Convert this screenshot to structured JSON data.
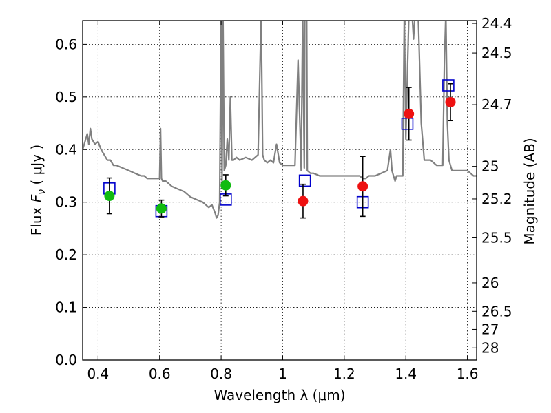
{
  "chart_data": {
    "type": "scatter",
    "xlabel": "Wavelength  λ (μm)",
    "ylabel": "Flux  F_ν  ( μJy )",
    "ylabel_parts": {
      "prefix": "Flux  ",
      "symbol": "F",
      "subscript": "ν",
      "suffix": "  ( μJy )"
    },
    "y2label": "Magnitude (AB)",
    "xlim": [
      0.35,
      1.63
    ],
    "ylim": [
      0.0,
      0.645
    ],
    "grid": true,
    "x_ticks": [
      0.4,
      0.6,
      0.8,
      1.0,
      1.2,
      1.4,
      1.6
    ],
    "x_tick_labels": [
      "0.4",
      "0.6",
      "0.8",
      "1",
      "1.2",
      "1.4",
      "1.6"
    ],
    "y_ticks": [
      0.0,
      0.1,
      0.2,
      0.3,
      0.4,
      0.5,
      0.6
    ],
    "y_tick_labels": [
      "0.0",
      "0.1",
      "0.2",
      "0.3",
      "0.4",
      "0.5",
      "0.6"
    ],
    "y2_ticks": [
      {
        "label": "24.4",
        "flux": 0.6397
      },
      {
        "label": "24.5",
        "flux": 0.5834
      },
      {
        "label": "24.7",
        "flux": 0.4853
      },
      {
        "label": "25",
        "flux": 0.3681
      },
      {
        "label": "25.2",
        "flux": 0.3062
      },
      {
        "label": "25.5",
        "flux": 0.2323
      },
      {
        "label": "26",
        "flux": 0.1466
      },
      {
        "label": "26.5",
        "flux": 0.0925
      },
      {
        "label": "27",
        "flux": 0.0583
      },
      {
        "label": "28",
        "flux": 0.0232
      }
    ],
    "colors": {
      "spectrum": "#808080",
      "green": "#11bb11",
      "red": "#ee1111",
      "model": "#0000cc",
      "errorbar": "#000000"
    },
    "spectrum": {
      "x": [
        0.35,
        0.36,
        0.365,
        0.37,
        0.375,
        0.38,
        0.39,
        0.4,
        0.41,
        0.42,
        0.43,
        0.44,
        0.45,
        0.46,
        0.48,
        0.5,
        0.52,
        0.54,
        0.55,
        0.56,
        0.58,
        0.6,
        0.603,
        0.606,
        0.61,
        0.62,
        0.64,
        0.66,
        0.68,
        0.7,
        0.72,
        0.74,
        0.76,
        0.77,
        0.78,
        0.785,
        0.79,
        0.795,
        0.8,
        0.803,
        0.806,
        0.81,
        0.815,
        0.82,
        0.825,
        0.83,
        0.835,
        0.84,
        0.85,
        0.86,
        0.88,
        0.9,
        0.92,
        0.93,
        0.935,
        0.94,
        0.95,
        0.96,
        0.97,
        0.98,
        0.99,
        1.0,
        1.02,
        1.04,
        1.05,
        1.06,
        1.065,
        1.07,
        1.072,
        1.075,
        1.078,
        1.08,
        1.09,
        1.1,
        1.12,
        1.15,
        1.2,
        1.25,
        1.26,
        1.27,
        1.28,
        1.3,
        1.32,
        1.34,
        1.35,
        1.355,
        1.36,
        1.365,
        1.37,
        1.38,
        1.39,
        1.395,
        1.4,
        1.41,
        1.42,
        1.425,
        1.43,
        1.44,
        1.45,
        1.46,
        1.47,
        1.48,
        1.5,
        1.52,
        1.525,
        1.53,
        1.535,
        1.54,
        1.545,
        1.55,
        1.56,
        1.58,
        1.6,
        1.62,
        1.63
      ],
      "y": [
        0.4,
        0.42,
        0.43,
        0.41,
        0.44,
        0.42,
        0.41,
        0.415,
        0.4,
        0.39,
        0.38,
        0.38,
        0.37,
        0.37,
        0.365,
        0.36,
        0.355,
        0.35,
        0.35,
        0.345,
        0.345,
        0.345,
        0.44,
        0.345,
        0.34,
        0.34,
        0.33,
        0.325,
        0.32,
        0.31,
        0.305,
        0.3,
        0.29,
        0.295,
        0.28,
        0.27,
        0.275,
        0.3,
        0.66,
        0.34,
        0.66,
        0.36,
        0.37,
        0.42,
        0.38,
        0.5,
        0.38,
        0.38,
        0.385,
        0.38,
        0.385,
        0.38,
        0.39,
        0.66,
        0.39,
        0.38,
        0.375,
        0.38,
        0.375,
        0.41,
        0.375,
        0.37,
        0.37,
        0.37,
        0.57,
        0.36,
        0.66,
        0.365,
        0.66,
        0.66,
        0.66,
        0.36,
        0.355,
        0.355,
        0.35,
        0.35,
        0.35,
        0.35,
        0.345,
        0.345,
        0.35,
        0.35,
        0.355,
        0.36,
        0.4,
        0.36,
        0.35,
        0.34,
        0.35,
        0.35,
        0.35,
        0.66,
        0.42,
        0.66,
        0.66,
        0.61,
        0.66,
        0.66,
        0.45,
        0.38,
        0.38,
        0.38,
        0.37,
        0.37,
        0.56,
        0.66,
        0.45,
        0.38,
        0.37,
        0.36,
        0.36,
        0.36,
        0.36,
        0.35,
        0.35
      ]
    },
    "green_points": [
      {
        "x": 0.437,
        "y": 0.312,
        "yerr": [
          0.034,
          0.034
        ]
      },
      {
        "x": 0.606,
        "y": 0.288,
        "yerr": [
          0.016,
          0.016
        ]
      },
      {
        "x": 0.815,
        "y": 0.332,
        "yerr": [
          0.02,
          0.02
        ]
      }
    ],
    "red_points": [
      {
        "x": 1.066,
        "y": 0.302,
        "yerr": [
          0.032,
          0.032
        ]
      },
      {
        "x": 1.26,
        "y": 0.33,
        "yerr": [
          0.057,
          0.057
        ]
      },
      {
        "x": 1.41,
        "y": 0.468,
        "yerr": [
          0.05,
          0.05
        ]
      },
      {
        "x": 1.545,
        "y": 0.49,
        "yerr": [
          0.035,
          0.035
        ]
      }
    ],
    "model_points": [
      {
        "x": 0.437,
        "y": 0.326
      },
      {
        "x": 0.606,
        "y": 0.283
      },
      {
        "x": 0.815,
        "y": 0.305
      },
      {
        "x": 1.072,
        "y": 0.341
      },
      {
        "x": 1.26,
        "y": 0.3
      },
      {
        "x": 1.405,
        "y": 0.449
      },
      {
        "x": 1.538,
        "y": 0.522
      }
    ]
  }
}
